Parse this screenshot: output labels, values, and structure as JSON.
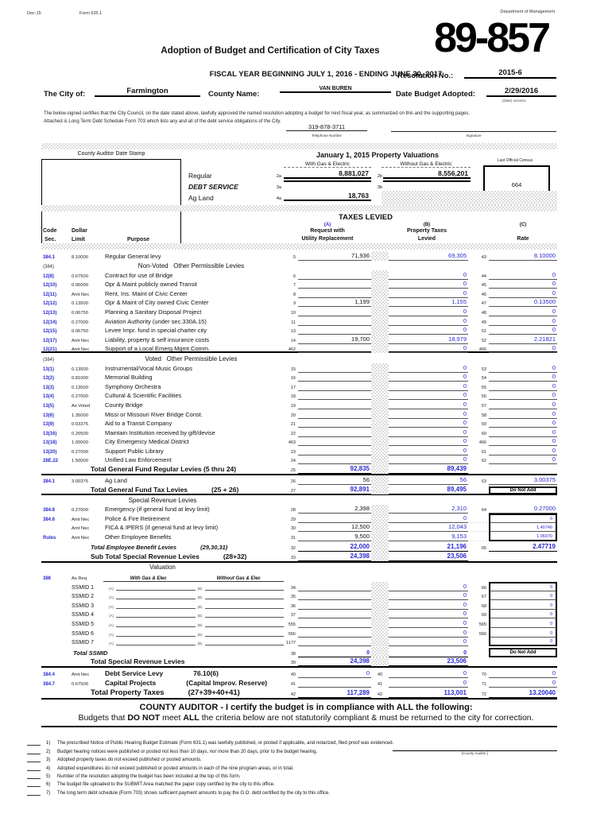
{
  "colors": {
    "blue": "#2a2ad2",
    "shade": "#dcdcdc"
  },
  "meta": {
    "revision": "Dec-15",
    "form": "Form 635.1",
    "department": "Department of Management",
    "number": "89-857"
  },
  "header": {
    "title": "Adoption of Budget and Certification of City Taxes",
    "fiscal": "FISCAL YEAR BEGINNING JULY 1, 2016 - ENDING JUNE 30, 2017",
    "resolution_label": "Resolution No.:",
    "resolution": "2015-6",
    "city_label": "The City of:",
    "city": "Farmington",
    "county_label": "County Name:",
    "county": "VAN BUREN",
    "adopted_label": "Date Budget Adopted:",
    "adopted": "2/29/2016",
    "date_hint": "(Date) xx/xx/xx",
    "cert_line1": "The below-signed certifies that the City Council, on the date stated above, lawfully approved the named resolution adopting a budget for next fiscal year, as summarized on this and the supporting pages.",
    "cert_line2": "Attached is Long Term Debt Schedule Form 703 which lists any and all of the debt service obligations of the City.",
    "phone": "319-878-3711",
    "phone_label": "Telephone Number",
    "signature_label": "Signature"
  },
  "valuations": {
    "stamp_label": "County Auditor Date Stamp",
    "title": "January 1, 2015 Property Valuations",
    "col_with": "With Gas & Electric",
    "col_without": "Without Gas & Electric",
    "census_label": "Last Official Census",
    "census": "664",
    "rows": [
      {
        "label": "Regular",
        "ln_a": "2a",
        "a": "8,881,027",
        "ln_b": "2b",
        "b": "8,556,201"
      },
      {
        "label": "DEBT SERVICE",
        "ln_a": "3a",
        "a": "",
        "ln_b": "3b",
        "b": ""
      },
      {
        "label": "Ag Land",
        "ln_a": "4a",
        "a": "18,763"
      }
    ]
  },
  "table": {
    "title": "TAXES LEVIED",
    "head": {
      "code1": "Code",
      "code2": "Sec.",
      "dollar1": "Dollar",
      "dollar2": "Limit",
      "purpose": "Purpose",
      "a_tag": "(A)",
      "a1": "Request with",
      "a2": "Utility Replacement",
      "b_tag": "(B)",
      "b1": "Property Taxes",
      "b2": "Levied",
      "c_tag": "(C)",
      "c1": "Rate"
    },
    "do_not_add": "Do Not Add",
    "rows": [
      {
        "t": "d",
        "code": "384.1",
        "limit": "8.10000",
        "p": "Regular General levy",
        "ln": "5",
        "a": "71,936",
        "b": "69,305",
        "ln2": "43",
        "c": "8.10000"
      },
      {
        "t": "s",
        "code": "(384)",
        "label": "Non-Voted   Other Permissible Levies"
      },
      {
        "t": "d",
        "code": "12(8)",
        "limit": "0.67500",
        "p": "Contract for use of Bridge",
        "ln": "6",
        "a": "",
        "b": "0",
        "ln2": "44",
        "c": "0"
      },
      {
        "t": "d",
        "code": "12(10)",
        "limit": "0.95000",
        "p": "Opr & Maint publicly owned Transit",
        "ln": "7",
        "a": "",
        "b": "0",
        "ln2": "45",
        "c": "0"
      },
      {
        "t": "d",
        "code": "12(11)",
        "limit": "Amt Nec",
        "p": "Rent, Ins. Maint of Civic Center",
        "ln": "8",
        "a": "",
        "b": "0",
        "ln2": "46",
        "c": "0"
      },
      {
        "t": "d",
        "code": "12(12)",
        "limit": "0.13500",
        "p": "Opr & Maint of City owned Civic Center",
        "ln": "9",
        "a": "1,199",
        "b": "1,155",
        "ln2": "47",
        "c": "0.13500"
      },
      {
        "t": "d",
        "code": "12(13)",
        "limit": "0.06750",
        "p": "Planning a Sanitary Disposal Project",
        "ln": "10",
        "a": "",
        "b": "0",
        "ln2": "48",
        "c": "0"
      },
      {
        "t": "d",
        "code": "12(14)",
        "limit": "0.27000",
        "p": "Aviation Authority (under sec.330A.15)",
        "ln": "11",
        "a": "",
        "b": "0",
        "ln2": "49",
        "c": "0"
      },
      {
        "t": "d",
        "code": "12(15)",
        "limit": "0.06750",
        "p": "Levee Impr. fund in special charter city",
        "ln": "13",
        "a": "",
        "b": "0",
        "ln2": "51",
        "c": "0"
      },
      {
        "t": "d",
        "code": "12(17)",
        "limit": "Amt Nec",
        "p": "Liability, property & self insurance costs",
        "ln": "14",
        "a": "19,700",
        "b": "18,979",
        "ln2": "52",
        "c": "2.21821"
      },
      {
        "t": "d",
        "code": "12(21)",
        "limit": "Amt Nec",
        "p": "Support of a Local  Emerg.Mgmt.Comm.",
        "ln": "462",
        "a": "",
        "b": "0",
        "ln2": "465",
        "c": "0",
        "rule": true
      },
      {
        "t": "s",
        "code": "(384)",
        "label": "Voted   Other Permissible Levies"
      },
      {
        "t": "d",
        "code": "13(1)",
        "limit": "0.13500",
        "p": "Instrumental/Vocal Music Groups",
        "ln": "15",
        "a": "",
        "b": "0",
        "ln2": "53",
        "c": "0"
      },
      {
        "t": "d",
        "code": "13(2)",
        "limit": "0.81000",
        "p": "Memorial Building",
        "ln": "16",
        "a": "",
        "b": "0",
        "ln2": "54",
        "c": "0"
      },
      {
        "t": "d",
        "code": "13(3)",
        "limit": "0.13500",
        "p": "Symphony Orchestra",
        "ln": "17",
        "a": "",
        "b": "0",
        "ln2": "55",
        "c": "0"
      },
      {
        "t": "d",
        "code": "13(4)",
        "limit": "0.27000",
        "p": "Cultural & Scientific Facilities",
        "ln": "18",
        "a": "",
        "b": "0",
        "ln2": "56",
        "c": "0"
      },
      {
        "t": "d",
        "code": "13(5)",
        "limit": "As Voted",
        "p": "County Bridge",
        "ln": "19",
        "a": "",
        "b": "0",
        "ln2": "57",
        "c": "0"
      },
      {
        "t": "d",
        "code": "13(6)",
        "limit": "1.35000",
        "p": "Missi or Missouri River Bridge Const.",
        "ln": "20",
        "a": "",
        "b": "0",
        "ln2": "58",
        "c": "0"
      },
      {
        "t": "d",
        "code": "13(9)",
        "limit": "0.03375",
        "p": "Aid to a Transit Company",
        "ln": "21",
        "a": "",
        "b": "0",
        "ln2": "59",
        "c": "0"
      },
      {
        "t": "d",
        "code": "13(16)",
        "limit": "0.20500",
        "p": "Maintain Institution received by gift/devise",
        "ln": "22",
        "a": "",
        "b": "0",
        "ln2": "60",
        "c": "0"
      },
      {
        "t": "d",
        "code": "13(18)",
        "limit": "1.00000",
        "p": "City Emergency Medical District",
        "ln": "463",
        "a": "",
        "b": "0",
        "ln2": "466",
        "c": "0"
      },
      {
        "t": "d",
        "code": "13(20)",
        "limit": "0.27000",
        "p": "Support Public Library",
        "ln": "23",
        "a": "",
        "b": "0",
        "ln2": "61",
        "c": "0"
      },
      {
        "t": "d",
        "code": "28E.22",
        "limit": "1.50000",
        "p": "Unified Law Enforcement",
        "ln": "24",
        "a": "",
        "b": "0",
        "ln2": "62",
        "c": "0"
      },
      {
        "t": "tot",
        "label": "Total General Fund Regular Levies (5 thru 24)",
        "ln": "25",
        "a": "92,835",
        "b": "89,439",
        "rule": true
      },
      {
        "t": "d",
        "code": "384.1",
        "limit": "3.00375",
        "p": "Ag Land",
        "ln": "26",
        "a": "56",
        "b": "56",
        "ln2": "63",
        "c": "3.00375"
      },
      {
        "t": "tot",
        "label": "Total General Fund Tax Levies",
        "label2": "(25 + 26)",
        "ln": "27",
        "a": "92,891",
        "b": "89,495",
        "dna": true,
        "rule": true
      },
      {
        "t": "s2",
        "label": "Special Revenue Levies"
      },
      {
        "t": "d",
        "code": "384.8",
        "limit": "0.27000",
        "p": "Emergency (if general fund at levy limit)",
        "ln": "28",
        "a": "2,398",
        "b": "2,310",
        "ln2": "64",
        "c": "0.27000"
      },
      {
        "t": "d",
        "code": "384.6",
        "limit": "Amt Nec",
        "p": "Police & Fire Retirement",
        "ln": "29",
        "a": "",
        "b": "0",
        "cbox": "top",
        "c": "0"
      },
      {
        "t": "d",
        "code": "",
        "limit": "Amt Nec",
        "p": "FICA & IPERS (if general fund at levy limit)",
        "ln": "30",
        "a": "12,500",
        "b": "12,043",
        "cbox": "mid",
        "c": "1.40749"
      },
      {
        "t": "d",
        "code": "Rules",
        "limit": "Amt Nec",
        "p": "Other Employee Benefits",
        "ln": "31",
        "a": "9,500",
        "b": "9,153",
        "cbox": "bot",
        "c": "1.06970"
      },
      {
        "t": "tot",
        "italic": true,
        "label": "Total Employee Benefit Levies",
        "label2": "(29,30,31)",
        "ln": "32",
        "a": "22,000",
        "b": "21,196",
        "ln2": "65",
        "c": "2.47719"
      },
      {
        "t": "tot",
        "label": "Sub Total Special Revenue Levies",
        "label2": "(28+32)",
        "ln": "33",
        "a": "24,398",
        "b": "23,506",
        "rule": true
      },
      {
        "t": "s2",
        "label": "Valuation"
      },
      {
        "t": "vh",
        "code": "386",
        "limit": "As Req",
        "with": "With Gas & Elec",
        "without": "Without Gas & Elec"
      },
      {
        "t": "ss",
        "label": "SSMID 1",
        "ln": "34",
        "b": "0",
        "ln2": "66",
        "c": "0",
        "cbox": "top"
      },
      {
        "t": "ss",
        "label": "SSMID 2",
        "ln": "35",
        "b": "0",
        "ln2": "67",
        "c": "0",
        "cbox": "mid"
      },
      {
        "t": "ss",
        "label": "SSMID 3",
        "ln": "36",
        "b": "0",
        "ln2": "68",
        "c": "0",
        "cbox": "mid"
      },
      {
        "t": "ss",
        "label": "SSMID 4",
        "ln": "37",
        "b": "0",
        "ln2": "69",
        "c": "0",
        "cbox": "mid"
      },
      {
        "t": "ss",
        "label": "SSMID 5",
        "ln": "555",
        "b": "0",
        "ln2": "565",
        "c": "0",
        "cbox": "mid"
      },
      {
        "t": "ss",
        "label": "SSMID 6",
        "ln": "556",
        "b": "0",
        "ln2": "566",
        "c": "0",
        "cbox": "mid"
      },
      {
        "t": "ss",
        "label": "SSMID 7",
        "ln": "1177",
        "b": "0",
        "ln2": "",
        "c": "0",
        "cbox": "bot"
      },
      {
        "t": "tot",
        "small": true,
        "italic": true,
        "label": "Total SSMID",
        "ln": "38",
        "a": "0",
        "b": "0",
        "dna": true
      },
      {
        "t": "tot",
        "label": "Total Special  Revenue Levies",
        "ln": "39",
        "a": "24,398",
        "b": "23,506",
        "rule": true
      },
      {
        "t": "dd",
        "code": "384.4",
        "limit": "Amt Nec",
        "p": "Debt Service Levy",
        "p2": "76.10(6)",
        "ln": "40",
        "a": "0",
        "lnb": "40",
        "b": "0",
        "ln2": "70",
        "c": "0"
      },
      {
        "t": "dd",
        "code": "384.7",
        "limit": "0.67500",
        "p": "Capital Projects",
        "p2": "(Capital Improv. Reserve)",
        "ln": "41",
        "a": "",
        "lnb": "41",
        "b": "0",
        "ln2": "71",
        "c": "0"
      },
      {
        "t": "tt",
        "label": "Total Property Taxes",
        "label2": "(27+39+40+41)",
        "ln": "42",
        "a": "117,289",
        "lnb": "42",
        "b": "113,001",
        "ln2": "72",
        "c": "13.20040",
        "rule": true
      }
    ]
  },
  "auditor": {
    "heading1": "COUNTY AUDITOR  -  I certify the budget is in compliance with ALL the following:",
    "heading2": [
      {
        "t": "Budgets that "
      },
      {
        "t": "DO NOT",
        "b": true
      },
      {
        "t": " meet "
      },
      {
        "t": "ALL",
        "b": true
      },
      {
        "t": " the criteria below are not statutorily compliant & must be returned to the city for correction."
      }
    ],
    "items": [
      "The prescribed Notice of Public Hearing Budget Estimate (Form 631.1) was lawfully published, or posted if applicable, and notarized, filed proof was evidenced.",
      "Budget hearing notices were published or posted not less than 10 days, nor more than 20 days, prior to the budget hearing.",
      "Adopted property taxes do not exceed published or posted amounts.",
      "Adopted expenditures do not exceed published or posted amounts in each of the nine program areas, or in total.",
      "Number of the resolution adopting the budget has been included at the top of this form.",
      "The budget file uploaded to the SUBMIT Area matched the paper copy certified by the city to this office.",
      "The long term debt schedule (Form 703) shows sufficient payment amounts to pay the G.O. debt certified by the city to this office."
    ],
    "signature_label": "(County Auditor )"
  }
}
